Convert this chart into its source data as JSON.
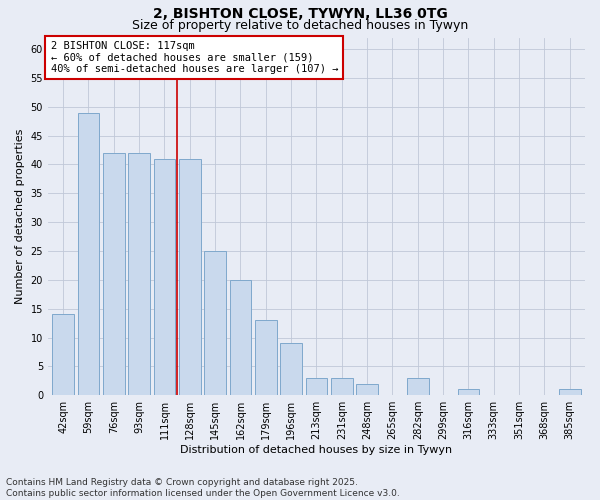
{
  "title1": "2, BISHTON CLOSE, TYWYN, LL36 0TG",
  "title2": "Size of property relative to detached houses in Tywyn",
  "xlabel": "Distribution of detached houses by size in Tywyn",
  "ylabel": "Number of detached properties",
  "categories": [
    "42sqm",
    "59sqm",
    "76sqm",
    "93sqm",
    "111sqm",
    "128sqm",
    "145sqm",
    "162sqm",
    "179sqm",
    "196sqm",
    "213sqm",
    "231sqm",
    "248sqm",
    "265sqm",
    "282sqm",
    "299sqm",
    "316sqm",
    "333sqm",
    "351sqm",
    "368sqm",
    "385sqm"
  ],
  "values": [
    14,
    49,
    42,
    42,
    41,
    41,
    25,
    20,
    13,
    9,
    3,
    3,
    2,
    0,
    3,
    0,
    1,
    0,
    0,
    0,
    1
  ],
  "bar_color": "#c9d9ed",
  "bar_edge_color": "#7fa8cc",
  "bar_edge_width": 0.7,
  "grid_color": "#c0c8d8",
  "bg_color": "#e8ecf5",
  "red_line_x": 4.5,
  "annotation_text": "2 BISHTON CLOSE: 117sqm\n← 60% of detached houses are smaller (159)\n40% of semi-detached houses are larger (107) →",
  "annotation_box_color": "#ffffff",
  "annotation_box_edge": "#cc0000",
  "red_line_color": "#cc0000",
  "ylim": [
    0,
    62
  ],
  "yticks": [
    0,
    5,
    10,
    15,
    20,
    25,
    30,
    35,
    40,
    45,
    50,
    55,
    60
  ],
  "footnote": "Contains HM Land Registry data © Crown copyright and database right 2025.\nContains public sector information licensed under the Open Government Licence v3.0.",
  "title1_fontsize": 10,
  "title2_fontsize": 9,
  "xlabel_fontsize": 8,
  "ylabel_fontsize": 8,
  "tick_fontsize": 7,
  "annot_fontsize": 7.5,
  "footnote_fontsize": 6.5
}
